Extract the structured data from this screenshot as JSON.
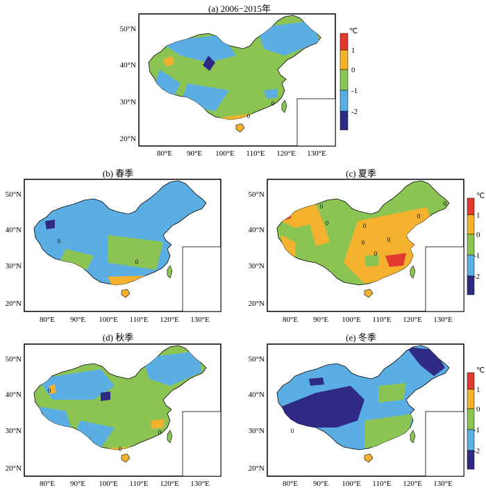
{
  "figure": {
    "panels": [
      {
        "id": "a",
        "title": "(a) 2006−2015年",
        "lat_ticks": [
          "50°N",
          "40°N",
          "30°N",
          "20°N"
        ],
        "lon_ticks": [
          "80°E",
          "90°E",
          "100°E",
          "110°E",
          "120°E",
          "130°E"
        ],
        "contour_labels": [
          "0",
          "0",
          "0"
        ]
      },
      {
        "id": "b",
        "title": "(b) 春季",
        "lat_ticks": [
          "50°N",
          "40°N",
          "30°N",
          "20°N"
        ],
        "lon_ticks": [
          "80°E",
          "90°E",
          "100°E",
          "110°E",
          "120°E",
          "130°E"
        ],
        "contour_labels": [
          "0",
          "0"
        ]
      },
      {
        "id": "c",
        "title": "(c) 夏季",
        "lat_ticks": [
          "50°N",
          "40°N",
          "30°N",
          "20°N"
        ],
        "lon_ticks": [
          "80°E",
          "90°E",
          "100°E",
          "110°E",
          "120°E",
          "130°E"
        ],
        "contour_labels": [
          "0",
          "0",
          "0",
          "0",
          "0",
          "0",
          "0",
          "0"
        ]
      },
      {
        "id": "d",
        "title": "(d) 秋季",
        "lat_ticks": [
          "50°N",
          "40°N",
          "30°N",
          "20°N"
        ],
        "lon_ticks": [
          "80°E",
          "90°E",
          "100°E",
          "110°E",
          "120°E",
          "130°E"
        ],
        "contour_labels": [
          "0",
          "0",
          "0"
        ]
      },
      {
        "id": "e",
        "title": "(e) 冬季",
        "lat_ticks": [
          "50°N",
          "40°N",
          "30°N",
          "20°N"
        ],
        "lon_ticks": [
          "80°E",
          "90°E",
          "100°E",
          "110°E",
          "120°E",
          "130°E"
        ],
        "contour_labels": [
          "0"
        ]
      }
    ],
    "colorbar": {
      "unit": "℃",
      "labels": [
        "1",
        "0",
        "-1",
        "-2"
      ],
      "colors": [
        "#e03a2e",
        "#f3b12d",
        "#8cc454",
        "#5aaee3",
        "#2f2a84"
      ]
    },
    "colors": {
      "land_green": "#8cc454",
      "land_blue": "#5aaee3",
      "warm": "#f3b12d",
      "hot": "#e03a2e",
      "cold": "#2f2a84",
      "frame": "#000000"
    }
  }
}
